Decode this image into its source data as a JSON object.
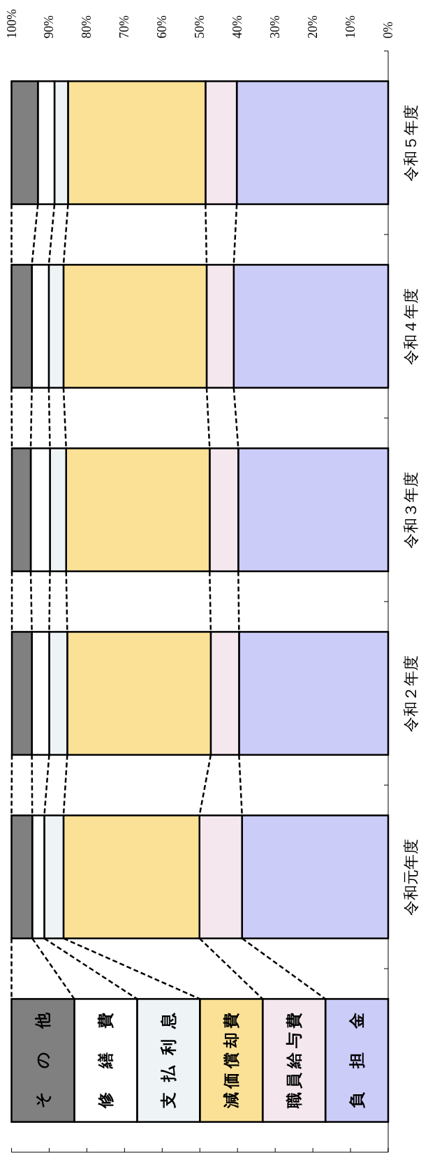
{
  "chart_data": {
    "type": "bar",
    "stacked": true,
    "orientation": "horizontal",
    "categories": [
      "令和５年度",
      "令和４年度",
      "令和３年度",
      "令和２年度",
      "令和元年度"
    ],
    "series": [
      {
        "name": "負担金",
        "color": "#ccccf8",
        "values": [
          40.2,
          41.0,
          39.8,
          39.6,
          38.8
        ]
      },
      {
        "name": "職員給与費",
        "color": "#f4e8ee",
        "values": [
          8.3,
          7.2,
          7.6,
          7.5,
          11.3
        ]
      },
      {
        "name": "減価償却費",
        "color": "#fbe196",
        "values": [
          36.5,
          38.0,
          38.1,
          38.1,
          36.1
        ]
      },
      {
        "name": "支払利息",
        "color": "#eef4f6",
        "values": [
          3.6,
          3.9,
          4.3,
          4.8,
          5.1
        ]
      },
      {
        "name": "修繕費",
        "color": "#ffffff",
        "values": [
          4.4,
          4.5,
          5.1,
          4.6,
          3.2
        ]
      },
      {
        "name": "その他",
        "color": "#808080",
        "values": [
          7.0,
          5.4,
          5.0,
          5.3,
          5.5
        ]
      }
    ],
    "xlim": [
      100,
      0
    ],
    "xticks": [
      {
        "value": 100,
        "label": "100%"
      },
      {
        "value": 90,
        "label": "90%"
      },
      {
        "value": 80,
        "label": "80%"
      },
      {
        "value": 70,
        "label": "70%"
      },
      {
        "value": 60,
        "label": "60%"
      },
      {
        "value": 50,
        "label": "50%"
      },
      {
        "value": 40,
        "label": "40%"
      },
      {
        "value": 30,
        "label": "30%"
      },
      {
        "value": 20,
        "label": "20%"
      },
      {
        "value": 10,
        "label": "10%"
      },
      {
        "value": 0,
        "label": "0%"
      }
    ],
    "legend": "bottom"
  }
}
